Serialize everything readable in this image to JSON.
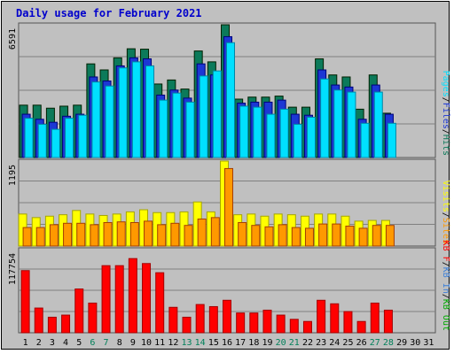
{
  "chart_data": [
    {
      "type": "bar",
      "title": "Daily usage for February 2021",
      "categories": [
        "1",
        "2",
        "3",
        "4",
        "5",
        "6",
        "7",
        "8",
        "9",
        "10",
        "11",
        "12",
        "13",
        "14",
        "15",
        "16",
        "17",
        "18",
        "19",
        "20",
        "21",
        "22",
        "23",
        "24",
        "25",
        "26",
        "27",
        "28",
        "29",
        "30",
        "31"
      ],
      "weekend_categories": [
        "6",
        "7",
        "13",
        "14",
        "20",
        "21",
        "27",
        "28"
      ],
      "max_label": "6591",
      "ymax": 6591,
      "legend": [
        "Pages",
        "Files",
        "Hits"
      ],
      "colors": {
        "Hits": "#0c7a5a",
        "Files": "#1c37d4",
        "Pages": "#00e0ff"
      },
      "series": [
        {
          "name": "Hits",
          "values": [
            2600,
            2600,
            2450,
            2550,
            2600,
            4650,
            4350,
            4950,
            5400,
            5380,
            3650,
            3850,
            3400,
            5290,
            4750,
            6591,
            2900,
            3000,
            3000,
            3050,
            2500,
            2500,
            4900,
            4100,
            4000,
            2400,
            4100,
            2200,
            0,
            0,
            0
          ]
        },
        {
          "name": "Files",
          "values": [
            2150,
            1900,
            1750,
            2050,
            2150,
            4000,
            3800,
            4550,
            4950,
            4900,
            3100,
            3350,
            2950,
            4650,
            4100,
            6000,
            2700,
            2750,
            2750,
            2850,
            2150,
            2100,
            4350,
            3600,
            3500,
            1900,
            3600,
            2150,
            0,
            0,
            0
          ]
        },
        {
          "name": "Pages",
          "values": [
            1950,
            1650,
            1400,
            1950,
            2100,
            3750,
            3550,
            4450,
            4750,
            4550,
            2850,
            3200,
            2750,
            4050,
            4300,
            5700,
            2550,
            2500,
            2150,
            2400,
            1650,
            2000,
            3900,
            3350,
            3250,
            1700,
            3250,
            1700,
            0,
            0,
            0
          ]
        }
      ]
    },
    {
      "type": "bar",
      "max_label": "1195",
      "ymax": 1195,
      "legend": [
        "Visits",
        "Sites"
      ],
      "colors": {
        "Visits": "#ffff00",
        "Sites": "#ff9900"
      },
      "series": [
        {
          "name": "Visits",
          "values": [
            450,
            400,
            420,
            440,
            500,
            450,
            430,
            450,
            480,
            510,
            470,
            470,
            480,
            620,
            480,
            1195,
            440,
            450,
            420,
            450,
            440,
            420,
            450,
            450,
            420,
            350,
            360,
            360,
            0,
            0,
            0
          ]
        },
        {
          "name": "Sites",
          "values": [
            260,
            260,
            300,
            320,
            320,
            300,
            330,
            340,
            330,
            350,
            300,
            320,
            290,
            380,
            400,
            1090,
            330,
            290,
            270,
            300,
            260,
            250,
            310,
            310,
            280,
            250,
            290,
            290,
            0,
            0,
            0
          ]
        }
      ]
    },
    {
      "type": "bar",
      "max_label": "117754",
      "ymax": 117754,
      "legend": [
        "KB F",
        "KB In",
        "KB Out"
      ],
      "colors": {
        "KB F": "#ff0000",
        "KB In": "#3b7fd8",
        "KB Out": "#00aa00"
      },
      "series": [
        {
          "name": "KB F",
          "values": [
            88000,
            35000,
            22000,
            25000,
            62000,
            42000,
            95000,
            95000,
            105000,
            98000,
            85000,
            36000,
            22000,
            40000,
            37000,
            46000,
            28000,
            28000,
            32000,
            25000,
            19000,
            16000,
            46000,
            41000,
            30000,
            16000,
            42000,
            32000,
            0,
            0,
            0
          ]
        }
      ]
    }
  ]
}
